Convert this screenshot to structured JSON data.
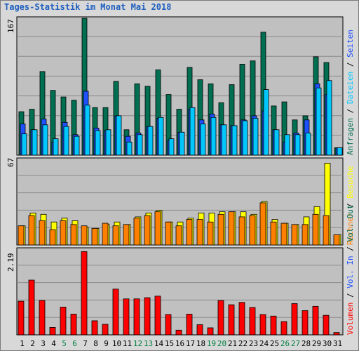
{
  "title": "Tages-Statistik im Monat Mai 2018",
  "chart_data": [
    {
      "type": "bar",
      "panel": "top",
      "ymax_label": "167",
      "ylim": [
        0,
        167
      ],
      "categories": [
        "1",
        "2",
        "3",
        "4",
        "5",
        "6",
        "7",
        "8",
        "9",
        "10",
        "11",
        "12",
        "13",
        "14",
        "15",
        "16",
        "17",
        "18",
        "19",
        "20",
        "21",
        "22",
        "23",
        "24",
        "25",
        "26",
        "27",
        "28",
        "29",
        "30",
        "31"
      ],
      "series": [
        {
          "name": "Anfragen",
          "color": "#006e50",
          "values": [
            53,
            56,
            102,
            79,
            71,
            67,
            167,
            58,
            58,
            90,
            31,
            87,
            84,
            104,
            74,
            56,
            107,
            92,
            87,
            64,
            86,
            111,
            115,
            150,
            60,
            65,
            43,
            48,
            120,
            113,
            9
          ]
        },
        {
          "name": "Seiten",
          "color": "#1e50ff",
          "values": [
            38,
            31,
            44,
            16,
            40,
            25,
            78,
            33,
            30,
            48,
            23,
            27,
            35,
            45,
            18,
            28,
            56,
            43,
            50,
            37,
            36,
            43,
            48,
            54,
            31,
            16,
            27,
            43,
            87,
            74,
            9
          ]
        },
        {
          "name": "Dateien",
          "color": "#00c8ff",
          "values": [
            26,
            31,
            37,
            20,
            35,
            23,
            61,
            30,
            31,
            48,
            16,
            25,
            35,
            46,
            20,
            28,
            58,
            38,
            46,
            37,
            36,
            42,
            45,
            80,
            31,
            25,
            25,
            27,
            82,
            91,
            9
          ]
        }
      ]
    },
    {
      "type": "bar",
      "panel": "middle",
      "ymax_label": "67",
      "ylim": [
        0,
        67
      ],
      "series": [
        {
          "name": "Besuche",
          "color": "#ffff00",
          "values": [
            15,
            25,
            24,
            18,
            21,
            19,
            14,
            13,
            16,
            18,
            16,
            22,
            25,
            27,
            18,
            18,
            21,
            25,
            25,
            26,
            26,
            26,
            24,
            34,
            20,
            17,
            16,
            22,
            30,
            64,
            8
          ]
        },
        {
          "name": "Rechner",
          "color": "#ff8000",
          "values": [
            15,
            23,
            19,
            12,
            19,
            16,
            15,
            13,
            17,
            15,
            16,
            21,
            23,
            26,
            18,
            15,
            20,
            20,
            18,
            24,
            26,
            22,
            23,
            33,
            18,
            17,
            16,
            16,
            24,
            23,
            8
          ]
        }
      ]
    },
    {
      "type": "bar",
      "panel": "bottom",
      "ymax_label": "2.19",
      "ylim": [
        0,
        2.19
      ],
      "series": [
        {
          "name": "Volumen",
          "color": "#ff0000",
          "values": [
            0.86,
            1.4,
            0.88,
            0.19,
            0.71,
            0.53,
            2.13,
            0.36,
            0.27,
            1.17,
            0.92,
            0.92,
            0.95,
            0.99,
            0.52,
            0.12,
            0.53,
            0.26,
            0.18,
            0.88,
            0.77,
            0.83,
            0.7,
            0.52,
            0.48,
            0.34,
            0.8,
            0.62,
            0.73,
            0.5,
            0.06
          ]
        },
        {
          "name": "Vol. In",
          "color": "#1e50ff",
          "values": []
        },
        {
          "name": "Vol. Out",
          "color": "#006e50",
          "values": []
        }
      ]
    }
  ],
  "weekend_days": [
    "5",
    "6",
    "12",
    "13",
    "19",
    "20",
    "26",
    "27"
  ],
  "colors": {
    "plot_bg": "#c0c0c0",
    "gridline": "#8a8a8a",
    "weekday_tick": "#000000",
    "weekend_tick": "#008040",
    "title": "#1e5fbf"
  },
  "right_legend": {
    "top": [
      {
        "text": "Anfragen",
        "color": "#006e50"
      },
      {
        "text": " / ",
        "color": "#000000"
      },
      {
        "text": "Dateien",
        "color": "#00c8ff"
      },
      {
        "text": " / ",
        "color": "#000000"
      },
      {
        "text": "Seiten",
        "color": "#1e50ff"
      }
    ],
    "middle": [
      {
        "text": "Rechner",
        "color": "#ff8000"
      },
      {
        "text": " / ",
        "color": "#000000"
      },
      {
        "text": "Besuche",
        "color": "#ffff00"
      }
    ],
    "bottom": [
      {
        "text": "Volumen",
        "color": "#ff0000"
      },
      {
        "text": " / ",
        "color": "#000000"
      },
      {
        "text": "Vol. In",
        "color": "#1e50ff"
      },
      {
        "text": " / ",
        "color": "#000000"
      },
      {
        "text": "Vol. Out",
        "color": "#006e50"
      }
    ]
  }
}
